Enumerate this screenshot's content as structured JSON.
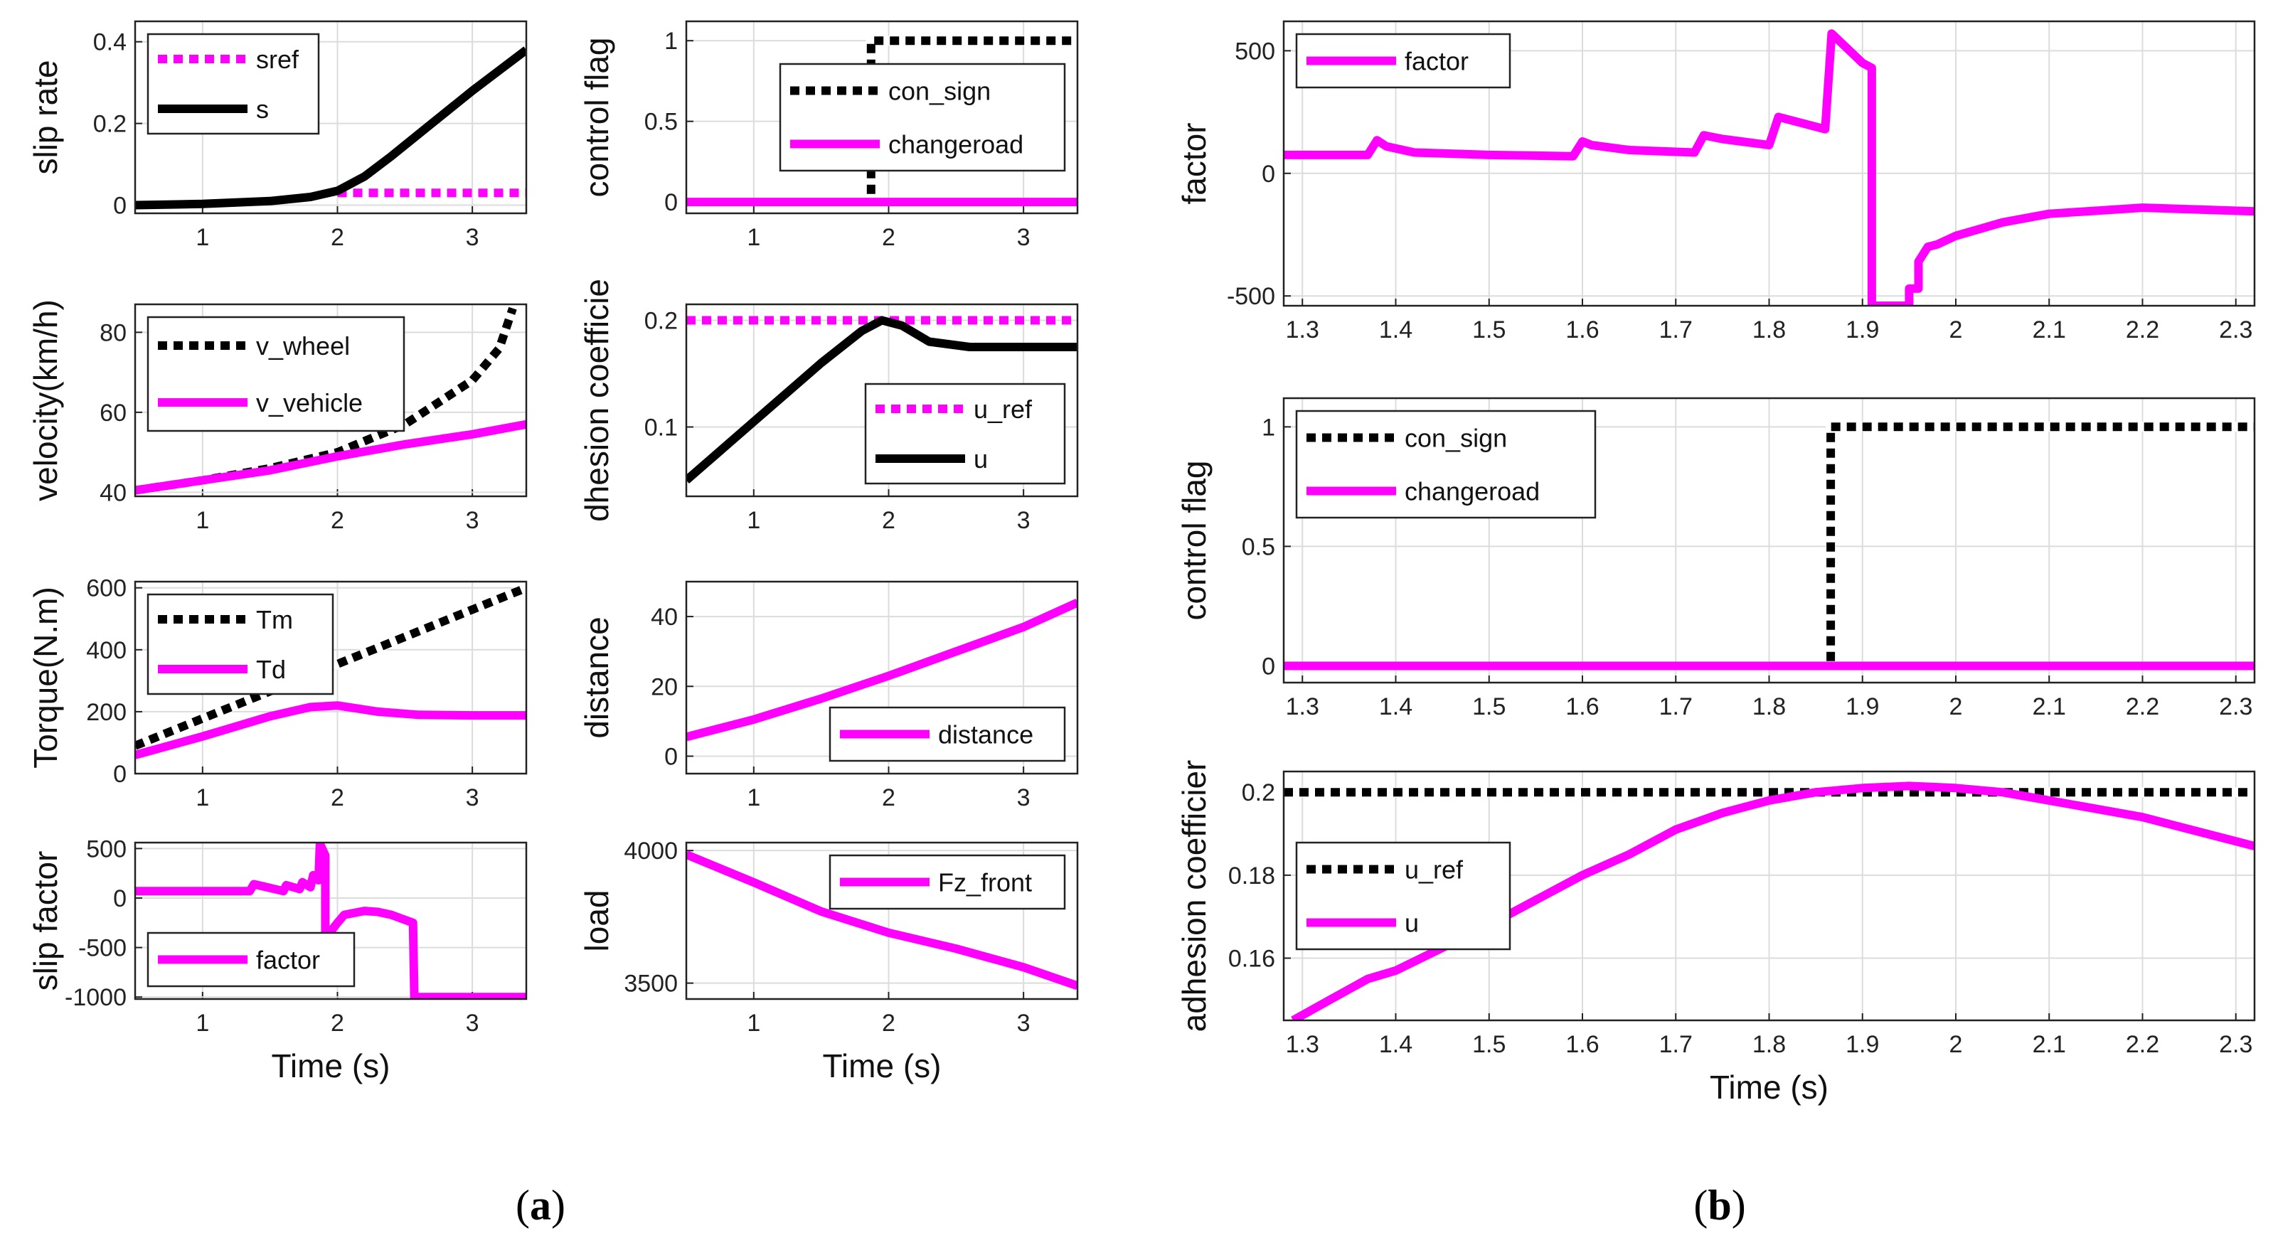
{
  "colors": {
    "magenta": "#ff00ff",
    "black": "#000000",
    "grid": "#dcdcdc"
  },
  "panels": [
    {
      "label_a": "(",
      "label_b": "a",
      "label_c": ")"
    },
    {
      "label_a": "(",
      "label_b": "b",
      "label_c": ")"
    }
  ],
  "chart_data": [
    {
      "type": "line",
      "panel": "a",
      "ylabel": "slip rate",
      "xlabel": "",
      "xlim": [
        0.5,
        3.4
      ],
      "ylim": [
        -0.02,
        0.45
      ],
      "xticks": [
        1,
        2,
        3
      ],
      "xticklabels": [
        "1",
        "2",
        "3"
      ],
      "yticks": [
        0,
        0.2,
        0.4
      ],
      "yticklabels": [
        "0",
        "0.2",
        "0.4"
      ],
      "legend": {
        "position": "top-left"
      },
      "series": [
        {
          "name": "sref",
          "color": "#ff00ff",
          "style": "dotted",
          "x": [
            2.0,
            3.4
          ],
          "y": [
            0.03,
            0.03
          ]
        },
        {
          "name": "s",
          "color": "#000000",
          "style": "solid",
          "x": [
            0.5,
            1.0,
            1.5,
            1.8,
            2.0,
            2.2,
            2.4,
            2.7,
            3.0,
            3.2,
            3.4
          ],
          "y": [
            0.0,
            0.003,
            0.01,
            0.02,
            0.035,
            0.07,
            0.12,
            0.2,
            0.28,
            0.33,
            0.38
          ]
        }
      ]
    },
    {
      "type": "line",
      "panel": "a",
      "ylabel": "velocity(km/h)",
      "xlabel": "",
      "xlim": [
        0.5,
        3.4
      ],
      "ylim": [
        39,
        87
      ],
      "xticks": [
        1,
        2,
        3
      ],
      "xticklabels": [
        "1",
        "2",
        "3"
      ],
      "yticks": [
        40,
        60,
        80
      ],
      "yticklabels": [
        "40",
        "60",
        "80"
      ],
      "legend": {
        "position": "top-left"
      },
      "series": [
        {
          "name": "v_wheel",
          "color": "#000000",
          "style": "dotted",
          "x": [
            0.5,
            1.0,
            1.5,
            2.0,
            2.5,
            3.0,
            3.2,
            3.3
          ],
          "y": [
            40.5,
            43,
            46,
            50,
            57,
            68,
            76,
            86
          ]
        },
        {
          "name": "v_vehicle",
          "color": "#ff00ff",
          "style": "solid",
          "x": [
            0.5,
            1.0,
            1.5,
            2.0,
            2.5,
            3.0,
            3.4
          ],
          "y": [
            40.5,
            43,
            45.5,
            49,
            52,
            54.5,
            57
          ]
        }
      ]
    },
    {
      "type": "line",
      "panel": "a",
      "ylabel": "Torque(N.m)",
      "xlabel": "",
      "xlim": [
        0.5,
        3.4
      ],
      "ylim": [
        0,
        620
      ],
      "xticks": [
        1,
        2,
        3
      ],
      "xticklabels": [
        "1",
        "2",
        "3"
      ],
      "yticks": [
        0,
        200,
        400,
        600
      ],
      "yticklabels": [
        "0",
        "200",
        "400",
        "600"
      ],
      "legend": {
        "position": "top-left"
      },
      "series": [
        {
          "name": "Tm",
          "color": "#000000",
          "style": "dotted",
          "x": [
            0.5,
            3.4
          ],
          "y": [
            90,
            600
          ]
        },
        {
          "name": "Td",
          "color": "#ff00ff",
          "style": "solid",
          "x": [
            0.5,
            1.0,
            1.5,
            1.8,
            2.0,
            2.3,
            2.6,
            3.0,
            3.4
          ],
          "y": [
            60,
            120,
            185,
            215,
            220,
            200,
            190,
            188,
            188
          ]
        }
      ]
    },
    {
      "type": "line",
      "panel": "a",
      "ylabel": "slip factor",
      "xlabel": "Time (s)",
      "xlim": [
        0.5,
        3.4
      ],
      "ylim": [
        -1020,
        560
      ],
      "xticks": [
        1,
        2,
        3
      ],
      "xticklabels": [
        "1",
        "2",
        "3"
      ],
      "yticks": [
        -1000,
        -500,
        0,
        500
      ],
      "yticklabels": [
        "-1000",
        "-500",
        "0",
        "500"
      ],
      "legend": {
        "position": "bottom-left"
      },
      "series": [
        {
          "name": "factor",
          "color": "#ff00ff",
          "style": "solid",
          "x": [
            0.5,
            1.35,
            1.38,
            1.6,
            1.62,
            1.72,
            1.74,
            1.8,
            1.82,
            1.86,
            1.87,
            1.91,
            1.91,
            1.95,
            1.96,
            2.0,
            2.05,
            2.2,
            2.3,
            2.4,
            2.5,
            2.56,
            2.57,
            3.4
          ],
          "y": [
            70,
            70,
            140,
            70,
            130,
            90,
            160,
            110,
            230,
            180,
            550,
            430,
            -520,
            -500,
            -320,
            -250,
            -170,
            -130,
            -140,
            -170,
            -220,
            -250,
            -1000,
            -1000
          ]
        }
      ]
    },
    {
      "type": "line",
      "panel": "a",
      "ylabel": "control flag",
      "xlabel": "",
      "xlim": [
        0.5,
        3.4
      ],
      "ylim": [
        -0.07,
        1.12
      ],
      "xticks": [
        1,
        2,
        3
      ],
      "xticklabels": [
        "1",
        "2",
        "3"
      ],
      "yticks": [
        0,
        0.5,
        1
      ],
      "yticklabels": [
        "0",
        "0.5",
        "1"
      ],
      "legend": {
        "position": "right"
      },
      "series": [
        {
          "name": "con_sign",
          "color": "#000000",
          "style": "dotted",
          "x": [
            1.87,
            1.87,
            3.4
          ],
          "y": [
            0.05,
            1.0,
            1.0
          ]
        },
        {
          "name": "changeroad",
          "color": "#ff00ff",
          "style": "solid",
          "x": [
            0.5,
            3.4
          ],
          "y": [
            0,
            0
          ]
        }
      ]
    },
    {
      "type": "line",
      "panel": "a",
      "ylabel": "dhesion coefficie",
      "xlabel": "",
      "xlim": [
        0.5,
        3.4
      ],
      "ylim": [
        0.035,
        0.215
      ],
      "xticks": [
        1,
        2,
        3
      ],
      "xticklabels": [
        "1",
        "2",
        "3"
      ],
      "yticks": [
        0.1,
        0.2
      ],
      "yticklabels": [
        "0.1",
        "0.2"
      ],
      "legend": {
        "position": "bottom-right"
      },
      "series": [
        {
          "name": "u_ref",
          "color": "#ff00ff",
          "style": "dotted",
          "x": [
            0.5,
            3.4
          ],
          "y": [
            0.2,
            0.2
          ]
        },
        {
          "name": "u",
          "color": "#000000",
          "style": "solid",
          "x": [
            0.5,
            1.0,
            1.5,
            1.8,
            1.95,
            2.1,
            2.3,
            2.6,
            3.0,
            3.4
          ],
          "y": [
            0.05,
            0.105,
            0.16,
            0.19,
            0.2,
            0.195,
            0.18,
            0.175,
            0.175,
            0.175
          ]
        }
      ]
    },
    {
      "type": "line",
      "panel": "a",
      "ylabel": "distance",
      "xlabel": "",
      "xlim": [
        0.5,
        3.4
      ],
      "ylim": [
        -5,
        50
      ],
      "xticks": [
        1,
        2,
        3
      ],
      "xticklabels": [
        "1",
        "2",
        "3"
      ],
      "yticks": [
        0,
        20,
        40
      ],
      "yticklabels": [
        "0",
        "20",
        "40"
      ],
      "legend": {
        "position": "bottom-right"
      },
      "series": [
        {
          "name": "distance",
          "color": "#ff00ff",
          "style": "solid",
          "x": [
            0.5,
            1.0,
            1.5,
            2.0,
            2.5,
            3.0,
            3.4
          ],
          "y": [
            5.5,
            10.5,
            16.5,
            23,
            30,
            37,
            44
          ]
        }
      ]
    },
    {
      "type": "line",
      "panel": "a",
      "ylabel": "load",
      "xlabel": "Time (s)",
      "xlim": [
        0.5,
        3.4
      ],
      "ylim": [
        3440,
        4030
      ],
      "xticks": [
        1,
        2,
        3
      ],
      "xticklabels": [
        "1",
        "2",
        "3"
      ],
      "yticks": [
        3500,
        4000
      ],
      "yticklabels": [
        "3500",
        "4000"
      ],
      "legend": {
        "position": "top-right"
      },
      "series": [
        {
          "name": "Fz_front",
          "color": "#ff00ff",
          "style": "solid",
          "x": [
            0.5,
            1.0,
            1.5,
            2.0,
            2.5,
            3.0,
            3.4
          ],
          "y": [
            3985,
            3880,
            3770,
            3690,
            3630,
            3560,
            3490
          ]
        }
      ]
    },
    {
      "type": "line",
      "panel": "b",
      "ylabel": "factor",
      "xlabel": "",
      "xlim": [
        1.28,
        2.32
      ],
      "ylim": [
        -540,
        620
      ],
      "xticks": [
        1.3,
        1.4,
        1.5,
        1.6,
        1.7,
        1.8,
        1.9,
        2,
        2.1,
        2.2,
        2.3
      ],
      "xticklabels": [
        "1.3",
        "1.4",
        "1.5",
        "1.6",
        "1.7",
        "1.8",
        "1.9",
        "2",
        "2.1",
        "2.2",
        "2.3"
      ],
      "yticks": [
        -500,
        0,
        500
      ],
      "yticklabels": [
        "-500",
        "0",
        "500"
      ],
      "legend": {
        "position": "top-left"
      },
      "series": [
        {
          "name": "factor",
          "color": "#ff00ff",
          "style": "solid",
          "x": [
            1.28,
            1.37,
            1.38,
            1.39,
            1.42,
            1.5,
            1.59,
            1.6,
            1.61,
            1.65,
            1.72,
            1.73,
            1.75,
            1.8,
            1.81,
            1.86,
            1.867,
            1.9,
            1.91,
            1.91,
            1.95,
            1.95,
            1.96,
            1.96,
            1.97,
            1.98,
            2.0,
            2.05,
            2.1,
            2.2,
            2.32
          ],
          "y": [
            75,
            75,
            135,
            110,
            85,
            75,
            70,
            130,
            115,
            95,
            85,
            155,
            140,
            115,
            230,
            180,
            570,
            450,
            430,
            -540,
            -540,
            -470,
            -470,
            -360,
            -300,
            -290,
            -255,
            -200,
            -165,
            -140,
            -155
          ]
        }
      ]
    },
    {
      "type": "line",
      "panel": "b",
      "ylabel": "control flag",
      "xlabel": "",
      "xlim": [
        1.28,
        2.32
      ],
      "ylim": [
        -0.07,
        1.12
      ],
      "xticks": [
        1.3,
        1.4,
        1.5,
        1.6,
        1.7,
        1.8,
        1.9,
        2,
        2.1,
        2.2,
        2.3
      ],
      "xticklabels": [
        "1.3",
        "1.4",
        "1.5",
        "1.6",
        "1.7",
        "1.8",
        "1.9",
        "2",
        "2.1",
        "2.2",
        "2.3"
      ],
      "yticks": [
        0,
        0.5,
        1
      ],
      "yticklabels": [
        "0",
        "0.5",
        "1"
      ],
      "legend": {
        "position": "top-left"
      },
      "series": [
        {
          "name": "con_sign",
          "color": "#000000",
          "style": "dotted",
          "x": [
            1.866,
            1.866,
            2.32
          ],
          "y": [
            0.02,
            1.0,
            1.0
          ]
        },
        {
          "name": "changeroad",
          "color": "#ff00ff",
          "style": "solid",
          "x": [
            1.28,
            2.32
          ],
          "y": [
            0,
            0
          ]
        }
      ]
    },
    {
      "type": "line",
      "panel": "b",
      "ylabel": "adhesion coefficier",
      "xlabel": "Time (s)",
      "xlim": [
        1.28,
        2.32
      ],
      "ylim": [
        0.145,
        0.205
      ],
      "xticks": [
        1.3,
        1.4,
        1.5,
        1.6,
        1.7,
        1.8,
        1.9,
        2,
        2.1,
        2.2,
        2.3
      ],
      "xticklabels": [
        "1.3",
        "1.4",
        "1.5",
        "1.6",
        "1.7",
        "1.8",
        "1.9",
        "2",
        "2.1",
        "2.2",
        "2.3"
      ],
      "yticks": [
        0.16,
        0.18,
        0.2
      ],
      "yticklabels": [
        "0.16",
        "0.18",
        "0.2"
      ],
      "legend": {
        "position": "left"
      },
      "series": [
        {
          "name": "u_ref",
          "color": "#000000",
          "style": "dotted",
          "x": [
            1.28,
            2.32
          ],
          "y": [
            0.2,
            0.2
          ]
        },
        {
          "name": "u",
          "color": "#ff00ff",
          "style": "solid",
          "x": [
            1.29,
            1.33,
            1.37,
            1.4,
            1.5,
            1.6,
            1.65,
            1.7,
            1.75,
            1.8,
            1.85,
            1.9,
            1.95,
            2.0,
            2.05,
            2.1,
            2.2,
            2.32
          ],
          "y": [
            0.145,
            0.15,
            0.155,
            0.157,
            0.168,
            0.18,
            0.185,
            0.191,
            0.195,
            0.198,
            0.2,
            0.201,
            0.2015,
            0.201,
            0.2,
            0.198,
            0.194,
            0.187
          ]
        }
      ]
    }
  ]
}
